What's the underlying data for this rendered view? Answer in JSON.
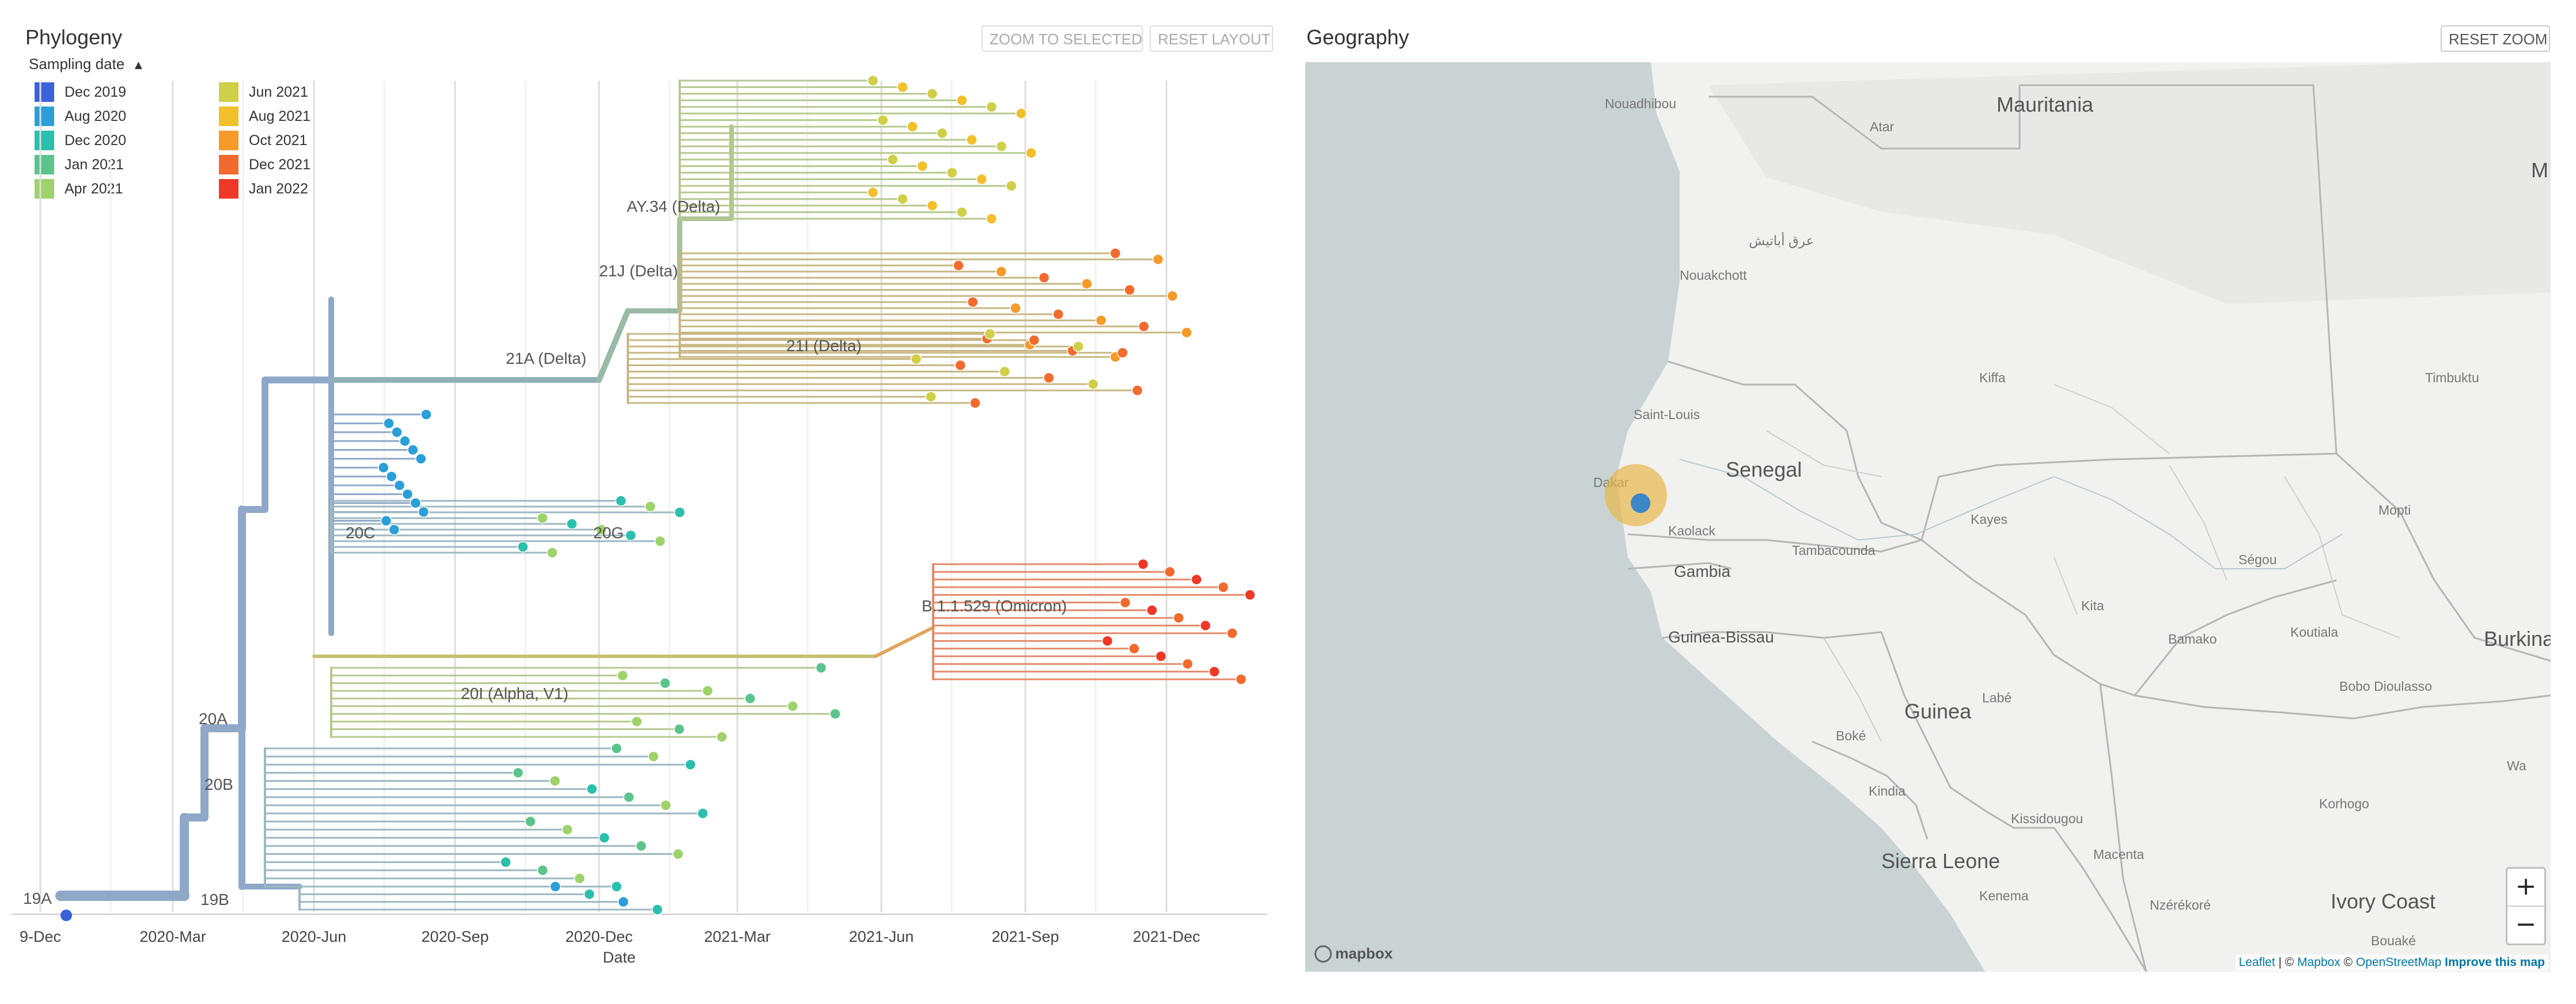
{
  "phylogeny": {
    "title": "Phylogeny",
    "buttons": {
      "zoom_selected": "ZOOM TO SELECTED",
      "reset_layout": "RESET LAYOUT"
    },
    "legend": {
      "title": "Sampling date",
      "toggle_icon": "chevron-up-icon",
      "items": [
        {
          "label": "Dec 2019",
          "color": "#3b62d9"
        },
        {
          "label": "Aug 2020",
          "color": "#2a9fd8"
        },
        {
          "label": "Dec 2020",
          "color": "#2bbfae"
        },
        {
          "label": "Jan 2021",
          "color": "#5bc48c"
        },
        {
          "label": "Apr 2021",
          "color": "#9ed26a"
        },
        {
          "label": "Jun 2021",
          "color": "#cfcf48"
        },
        {
          "label": "Aug 2021",
          "color": "#f2c02a"
        },
        {
          "label": "Oct 2021",
          "color": "#f69a2a"
        },
        {
          "label": "Dec 2021",
          "color": "#f26a2e"
        },
        {
          "label": "Jan 2022",
          "color": "#ef3828"
        }
      ]
    },
    "axis": {
      "title": "Date",
      "ticks": [
        "9-Dec",
        "2020-Mar",
        "2020-Jun",
        "2020-Sep",
        "2020-Dec",
        "2021-Mar",
        "2021-Jun",
        "2021-Sep",
        "2021-Dec"
      ]
    },
    "clades": [
      "19A",
      "19B",
      "20A",
      "20B",
      "20C",
      "20G",
      "20I (Alpha, V1)",
      "21A (Delta)",
      "21J (Delta)",
      "21I (Delta)",
      "AY.34 (Delta)",
      "B.1.1.529 (Omicron)"
    ]
  },
  "geography": {
    "title": "Geography",
    "buttons": {
      "reset_zoom": "RESET ZOOM"
    },
    "countries": [
      "Mauritania",
      "Senegal",
      "Gambia",
      "Guinea-Bissau",
      "Guinea",
      "Sierra Leone",
      "Ivory Coast",
      "Burkina",
      "M"
    ],
    "cities": [
      "Nouadhibou",
      "Atar",
      "Nouakchott",
      "عرق أباتيش",
      "Kiffa",
      "Saint-Louis",
      "Timbuktu",
      "Dakar",
      "Kaolack",
      "Tambacounda",
      "Kayes",
      "Mopti",
      "Ségou",
      "Kita",
      "Bamako",
      "Koutiala",
      "Bobo Dioulasso",
      "Labé",
      "Boké",
      "Kindia",
      "Kissidougou",
      "Macenta",
      "Kenema",
      "Nzérékoré",
      "Korhogo",
      "Wa",
      "Bouaké"
    ],
    "zoom": {
      "in": "+",
      "out": "−"
    },
    "attribution": {
      "leaflet": "Leaflet",
      "sep": " | © ",
      "mapbox": "Mapbox",
      "osm_prefix": " © ",
      "osm": "OpenStreetMap",
      "improve": "Improve this map"
    },
    "logo": "mapbox",
    "sample_point_colors": {
      "outer": "#e8b84a",
      "inner": "#3d86c8"
    }
  }
}
